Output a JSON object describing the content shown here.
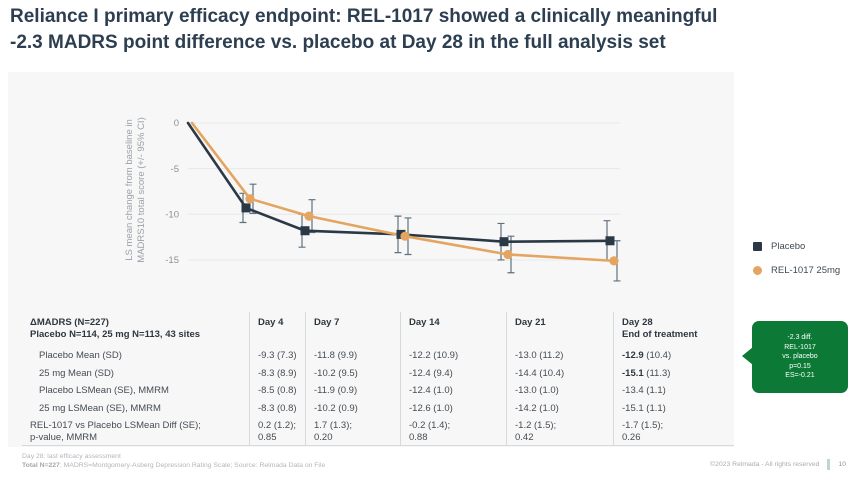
{
  "title": {
    "line1": "Reliance I primary efficacy endpoint: REL-1017 showed a clinically meaningful",
    "line2": "-2.3 MADRS point difference vs. placebo at Day 28 in the full analysis set",
    "full": "Reliance I primary efficacy endpoint: REL-1017 showed a clinically meaningful -2.3 MADRS point difference vs. placebo at Day 28 in the full analysis set"
  },
  "chart_data": {
    "type": "line",
    "x_days": [
      0,
      4,
      7,
      14,
      21,
      28
    ],
    "ylabel_line1": "LS mean change from baseline in",
    "ylabel_line2": "MADRS10 total score (+/- 95% CI)",
    "yticks": [
      0,
      -5,
      -10,
      -15
    ],
    "ylim": [
      1,
      -17
    ],
    "grid": true,
    "legend_position": "right",
    "series": [
      {
        "name": "Placebo",
        "marker": "square",
        "color": "#2b3947",
        "values": [
          0,
          -9.3,
          -11.8,
          -12.2,
          -13.0,
          -12.9
        ],
        "ci95": [
          0,
          1.6,
          1.8,
          2.0,
          2.0,
          2.2
        ]
      },
      {
        "name": "REL-1017 25mg",
        "marker": "circle",
        "color": "#e3a55f",
        "values": [
          0,
          -8.3,
          -10.2,
          -12.4,
          -14.4,
          -15.1
        ],
        "ci95": [
          0,
          1.6,
          1.8,
          2.0,
          2.0,
          2.2
        ]
      }
    ]
  },
  "table": {
    "header": {
      "title_line1": "ΔMADRS (N=227)",
      "title_line2": "Placebo N=114, 25 mg N=113, 43 sites"
    },
    "columns": [
      {
        "label": "Day 4",
        "sub": ""
      },
      {
        "label": "Day 7",
        "sub": ""
      },
      {
        "label": "Day 14",
        "sub": ""
      },
      {
        "label": "Day 21",
        "sub": ""
      },
      {
        "label": "Day 28",
        "sub": "End of treatment"
      }
    ],
    "rows": [
      {
        "label": "Placebo Mean (SD)",
        "indent": true,
        "cells": [
          "-9.3 (7.3)",
          "-11.8 (9.9)",
          "-12.2 (10.9)",
          "-13.0 (11.2)",
          {
            "b": "-12.9",
            "t": " (10.4)"
          }
        ]
      },
      {
        "label": "25 mg  Mean (SD)",
        "indent": true,
        "cells": [
          "-8.3 (8.9)",
          "-10.2 (9.5)",
          "-12.4 (9.4)",
          "-14.4 (10.4)",
          {
            "b": "-15.1",
            "t": " (11.3)"
          }
        ]
      },
      {
        "label": "Placebo LSMean (SE), MMRM",
        "indent": true,
        "cells": [
          "-8.5 (0.8)",
          "-11.9 (0.9)",
          "-12.4 (1.0)",
          "-13.0 (1.0)",
          "-13.4 (1.1)"
        ]
      },
      {
        "label": "25 mg LSMean (SE), MMRM",
        "indent": true,
        "cells": [
          "-8.3 (0.8)",
          "-10.2 (0.9)",
          "-12.6 (1.0)",
          "-14.2 (1.0)",
          "-15.1 (1.1)"
        ]
      },
      {
        "label": "REL-1017 vs Placebo LSMean Diff (SE);\np-value, MMRM",
        "indent": false,
        "cells": [
          "0.2 (1.2);\n0.85",
          "1.7 (1.3);\n0.20",
          "-0.2 (1.4);\n0.88",
          "-1.2 (1.5);\n0.42",
          "-1.7 (1.5);\n0.26"
        ]
      }
    ]
  },
  "callout": {
    "color": "#0c7a36",
    "lines": [
      "-2.3 diff.",
      "REL-1017",
      "vs. placebo",
      "p=0.15",
      "ES=-0.21"
    ]
  },
  "footnotes": {
    "line1": "Day 28: last efficacy assessment",
    "line2_bold": "Total N=227",
    "line2_rest": "; MADRS=Montgomery-Asberg Depression Rating Scale; Source: Relmada Data on File"
  },
  "footer": {
    "copyright": "©2023 Relmada - All rights reserved",
    "page_number": "10"
  },
  "colors": {
    "title": "#2c3e50",
    "panel_background": "#f7f7f8",
    "placebo_series": "#2b3947",
    "rel1017_series": "#e3a55f",
    "callout_green": "#0c7a36",
    "gridline": "#e7e8ea"
  }
}
